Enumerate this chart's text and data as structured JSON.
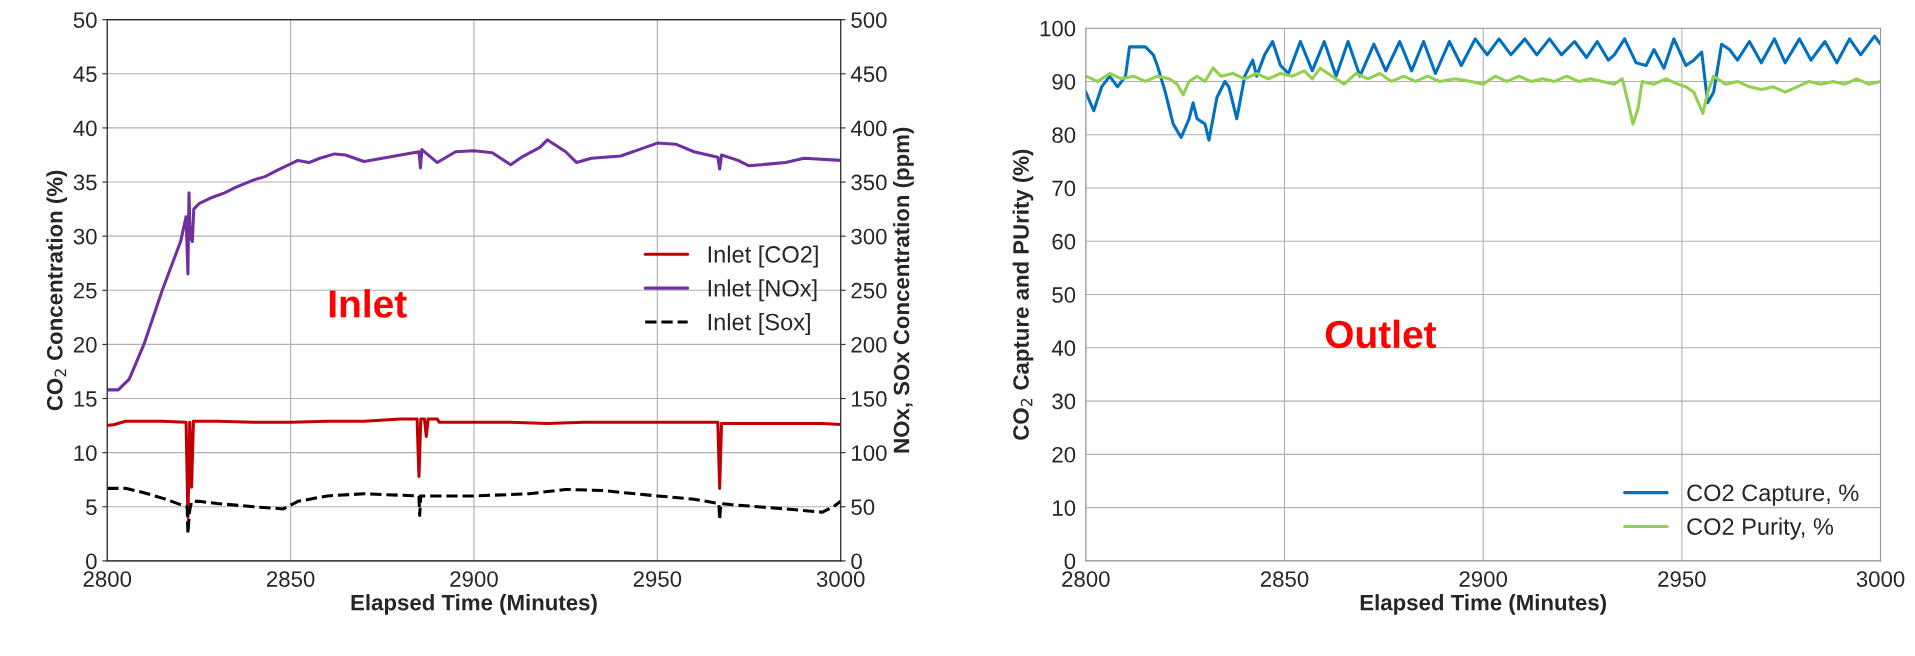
{
  "chart_data": [
    {
      "type": "line",
      "xlabel": "Elapsed Time (Minutes)",
      "ylabel": "CO$_{2}$ Concentration (%)",
      "y2label": "NOx, SOx Concentration (ppm)",
      "xlim": [
        2800,
        3000
      ],
      "xticks": [
        2800,
        2850,
        2900,
        2950,
        3000
      ],
      "ylim": [
        0,
        50
      ],
      "yticks": [
        0,
        5,
        10,
        15,
        20,
        25,
        30,
        35,
        40,
        45,
        50
      ],
      "y2lim": [
        0,
        500
      ],
      "y2ticks": [
        0,
        50,
        100,
        150,
        200,
        250,
        300,
        350,
        400,
        450,
        500
      ],
      "grid": true,
      "legend": "right",
      "annotations": [
        "Inlet"
      ],
      "series": [
        {
          "name": "Inlet [CO2]",
          "color": "#c00000",
          "line_style": "solid",
          "x": [
            2800,
            2802,
            2805,
            2810,
            2815,
            2821.5,
            2822,
            2822.5,
            2823,
            2823.5,
            2824,
            2830,
            2840,
            2850,
            2860,
            2870,
            2880,
            2884.5,
            2885,
            2885.5,
            2886.5,
            2887,
            2887.5,
            2890,
            2890.5,
            2900,
            2910,
            2920,
            2930,
            2940,
            2950,
            2960,
            2966.5,
            2967,
            2967.5,
            2975,
            2985,
            2995,
            3000
          ],
          "values": [
            12.5,
            12.6,
            12.9,
            12.9,
            12.9,
            12.8,
            4,
            12.8,
            6.8,
            12.9,
            12.9,
            12.9,
            12.8,
            12.8,
            12.9,
            12.9,
            13.1,
            13.1,
            7.8,
            13.1,
            13.1,
            11.5,
            13.1,
            13.1,
            12.8,
            12.8,
            12.8,
            12.7,
            12.8,
            12.8,
            12.8,
            12.8,
            12.8,
            6.7,
            12.7,
            12.7,
            12.7,
            12.7,
            12.6
          ]
        },
        {
          "name": "Inlet [NOx]",
          "color": "#7030a0",
          "line_style": "solid",
          "axis": "y2",
          "x": [
            2800,
            2803,
            2806,
            2810,
            2815,
            2820,
            2821.5,
            2822,
            2822.3,
            2822.6,
            2823.2,
            2823.6,
            2825,
            2828,
            2832,
            2835,
            2840,
            2843,
            2847,
            2852,
            2855,
            2858,
            2862,
            2865,
            2870,
            2875,
            2880,
            2885,
            2885.4,
            2885.8,
            2890,
            2895,
            2900,
            2905,
            2910,
            2913,
            2918,
            2920,
            2925,
            2928,
            2932,
            2940,
            2945,
            2950,
            2955,
            2960,
            2966.5,
            2967,
            2967.5,
            2972,
            2975,
            2985,
            2990,
            3000
          ],
          "values": [
            158,
            158,
            168,
            200,
            250,
            295,
            318,
            265,
            340,
            300,
            295,
            325,
            330,
            335,
            340,
            345,
            352,
            355,
            362,
            370,
            368,
            372,
            376,
            375,
            369,
            372,
            375,
            378,
            363,
            380,
            368,
            378,
            379,
            377,
            366,
            373,
            382,
            389,
            378,
            368,
            372,
            374,
            380,
            386,
            385,
            378,
            373,
            362,
            375,
            370,
            365,
            368,
            372,
            370
          ]
        },
        {
          "name": "Inlet [Sox]",
          "color": "#000000",
          "line_style": "dashed",
          "axis": "y2",
          "x": [
            2800,
            2805,
            2810,
            2815,
            2820,
            2821.8,
            2822,
            2822.4,
            2823,
            2825,
            2830,
            2840,
            2848,
            2852,
            2860,
            2870,
            2885,
            2885.2,
            2885.5,
            2887,
            2900,
            2915,
            2925,
            2935,
            2950,
            2960,
            2966.8,
            2967,
            2967.3,
            2970,
            2985,
            2995,
            2998,
            3000
          ],
          "values": [
            67,
            67,
            63,
            58,
            52,
            50,
            25,
            45,
            55,
            55,
            53,
            50,
            48,
            55,
            60,
            62,
            60,
            42,
            60,
            60,
            60,
            62,
            66,
            65,
            60,
            57,
            53,
            38,
            53,
            52,
            48,
            45,
            50,
            55
          ]
        }
      ]
    },
    {
      "type": "line",
      "xlabel": "Elapsed Time (Minutes)",
      "ylabel": "CO$_{2}$ Capture and PUrity (%)",
      "xlim": [
        2800,
        3000
      ],
      "xticks": [
        2800,
        2850,
        2900,
        2950,
        3000
      ],
      "ylim": [
        0,
        100
      ],
      "yticks": [
        0,
        10,
        20,
        30,
        40,
        50,
        60,
        70,
        80,
        90,
        100
      ],
      "grid": true,
      "legend": "bottom right",
      "annotations": [
        "Outlet"
      ],
      "series": [
        {
          "name": "CO2 Capture, %",
          "color": "#0070c0",
          "line_style": "solid",
          "x": [
            2800,
            2802,
            2804,
            2806,
            2808,
            2810,
            2811,
            2815,
            2817,
            2818,
            2820,
            2822,
            2824,
            2826,
            2827,
            2828,
            2830,
            2831,
            2833,
            2835,
            2836,
            2838,
            2840,
            2842,
            2843,
            2845,
            2847,
            2849,
            2851,
            2854,
            2857,
            2860,
            2863,
            2866,
            2869,
            2872.5,
            2875.5,
            2879,
            2882,
            2885,
            2888,
            2891.5,
            2894.5,
            2898,
            2901,
            2904,
            2907,
            2910.5,
            2913.5,
            2916.7,
            2919.7,
            2923,
            2926,
            2928.7,
            2931.5,
            2933,
            2935.6,
            2938.5,
            2941,
            2943,
            2945.5,
            2948,
            2951,
            2953,
            2955,
            2956.5,
            2958,
            2960,
            2962,
            2964,
            2967,
            2970,
            2973.3,
            2976,
            2979.6,
            2982.5,
            2986,
            2989,
            2992.2,
            2995,
            2998.5,
            3000
          ],
          "values": [
            88,
            84.5,
            89,
            91,
            89,
            91,
            96.5,
            96.5,
            95,
            93,
            88,
            82,
            79.5,
            83,
            86,
            83,
            82,
            79,
            87,
            90,
            89,
            83,
            91,
            94,
            91,
            95,
            97.5,
            93,
            91.5,
            97.5,
            92,
            97.5,
            91,
            97.5,
            91,
            97,
            92,
            97.5,
            92,
            97.5,
            91.5,
            97.5,
            93,
            98,
            95,
            98,
            95,
            98,
            95,
            98,
            95,
            97.5,
            94.5,
            97.5,
            94,
            95,
            98,
            93.5,
            93,
            96,
            92.5,
            98,
            93,
            94,
            95.5,
            86,
            88,
            97,
            96,
            94,
            97.5,
            93.5,
            98,
            93.5,
            98,
            94,
            97.5,
            93.5,
            98,
            95,
            98.5,
            97
          ]
        },
        {
          "name": "CO2 Purity, %",
          "color": "#92d050",
          "line_style": "solid",
          "x": [
            2800,
            2803,
            2806,
            2809,
            2812,
            2815,
            2818,
            2821,
            2823,
            2824.5,
            2826,
            2828,
            2830,
            2832,
            2834,
            2837,
            2840,
            2843,
            2846,
            2849,
            2852,
            2855,
            2857,
            2859,
            2862,
            2865,
            2868,
            2871,
            2874,
            2877,
            2880,
            2883,
            2886,
            2889,
            2893,
            2897,
            2900,
            2903,
            2906,
            2909,
            2912,
            2915,
            2918,
            2921,
            2924,
            2927,
            2930,
            2933,
            2935,
            2936.5,
            2937.7,
            2939,
            2940,
            2943,
            2946,
            2949,
            2951,
            2953,
            2955.3,
            2956.5,
            2958,
            2961,
            2964,
            2967,
            2970,
            2973,
            2976,
            2979,
            2982,
            2985,
            2988,
            2991,
            2994,
            2997,
            3000
          ],
          "values": [
            91,
            90,
            91.5,
            90.5,
            91,
            90,
            91,
            90.5,
            89.5,
            87.5,
            90,
            91,
            90,
            92.5,
            91,
            91.5,
            90.5,
            91.5,
            90.5,
            91.5,
            91,
            92,
            90.5,
            92.5,
            91,
            89.5,
            91.5,
            90.5,
            91.5,
            90,
            91,
            90,
            91,
            90,
            90.5,
            90,
            89.5,
            91,
            90,
            91,
            90,
            90.5,
            90,
            91,
            90,
            90.5,
            90,
            89.5,
            90.5,
            86,
            82,
            85,
            90,
            89.5,
            90.5,
            89.5,
            89,
            88,
            84,
            88,
            91,
            89.5,
            90,
            89,
            88.5,
            89,
            88,
            89,
            90,
            89.5,
            90,
            89.5,
            90.5,
            89.5,
            90
          ]
        }
      ]
    }
  ]
}
